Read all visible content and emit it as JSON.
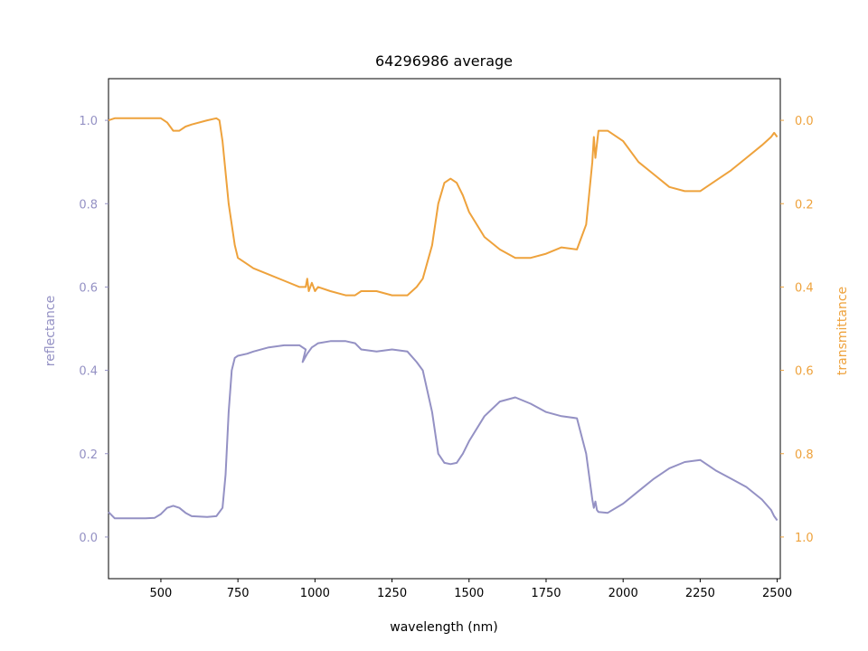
{
  "chart_data": {
    "type": "line",
    "title": "64296986 average",
    "xlabel": "wavelength (nm)",
    "ylabel_left": "reflectance",
    "ylabel_right": "transmittance",
    "xlim": [
      330,
      2510
    ],
    "ylim_left": [
      -0.1,
      1.1
    ],
    "ylim_right_inverted": [
      1.1,
      -0.1
    ],
    "xticks": [
      500,
      750,
      1000,
      1250,
      1500,
      1750,
      2000,
      2250,
      2500
    ],
    "yticks_left": [
      0.0,
      0.2,
      0.4,
      0.6,
      0.8,
      1.0
    ],
    "yticks_right": [
      0.0,
      0.2,
      0.4,
      0.6,
      0.8,
      1.0
    ],
    "grid": false,
    "colors": {
      "reflectance": "#9491c4",
      "transmittance": "#eea23c",
      "axis": "#000000"
    },
    "series": [
      {
        "name": "reflectance",
        "axis": "left",
        "x": [
          330,
          350,
          400,
          450,
          480,
          500,
          520,
          540,
          560,
          580,
          600,
          650,
          680,
          700,
          710,
          720,
          730,
          740,
          750,
          780,
          800,
          850,
          900,
          950,
          970,
          960,
          975,
          990,
          1000,
          1010,
          1050,
          1100,
          1130,
          1150,
          1200,
          1250,
          1300,
          1330,
          1350,
          1380,
          1400,
          1420,
          1440,
          1460,
          1480,
          1500,
          1550,
          1600,
          1650,
          1700,
          1750,
          1800,
          1850,
          1880,
          1900,
          1905,
          1910,
          1915,
          1920,
          1950,
          2000,
          2050,
          2100,
          2150,
          2200,
          2250,
          2300,
          2350,
          2400,
          2450,
          2480,
          2490,
          2500
        ],
        "values": [
          0.06,
          0.045,
          0.045,
          0.045,
          0.046,
          0.055,
          0.07,
          0.075,
          0.07,
          0.058,
          0.05,
          0.048,
          0.05,
          0.07,
          0.15,
          0.3,
          0.4,
          0.43,
          0.435,
          0.44,
          0.445,
          0.455,
          0.46,
          0.46,
          0.45,
          0.42,
          0.44,
          0.455,
          0.46,
          0.465,
          0.47,
          0.47,
          0.465,
          0.45,
          0.445,
          0.45,
          0.445,
          0.42,
          0.4,
          0.3,
          0.2,
          0.178,
          0.175,
          0.178,
          0.2,
          0.23,
          0.29,
          0.325,
          0.335,
          0.32,
          0.3,
          0.29,
          0.285,
          0.2,
          0.09,
          0.07,
          0.085,
          0.065,
          0.06,
          0.058,
          0.08,
          0.11,
          0.14,
          0.165,
          0.18,
          0.185,
          0.16,
          0.14,
          0.12,
          0.09,
          0.065,
          0.05,
          0.04
        ]
      },
      {
        "name": "transmittance",
        "axis": "right",
        "x": [
          330,
          350,
          400,
          450,
          500,
          520,
          540,
          560,
          580,
          600,
          650,
          680,
          690,
          700,
          720,
          740,
          750,
          780,
          800,
          850,
          900,
          950,
          970,
          975,
          980,
          990,
          1000,
          1010,
          1050,
          1100,
          1130,
          1150,
          1200,
          1250,
          1300,
          1330,
          1350,
          1380,
          1400,
          1420,
          1440,
          1460,
          1480,
          1500,
          1550,
          1600,
          1650,
          1700,
          1750,
          1800,
          1850,
          1880,
          1900,
          1905,
          1910,
          1920,
          1950,
          2000,
          2050,
          2100,
          2150,
          2200,
          2250,
          2300,
          2350,
          2400,
          2450,
          2480,
          2490,
          2500
        ],
        "values": [
          0.0,
          -0.005,
          -0.005,
          -0.005,
          -0.005,
          0.005,
          0.025,
          0.025,
          0.015,
          0.01,
          0.0,
          -0.005,
          0.0,
          0.05,
          0.2,
          0.3,
          0.33,
          0.345,
          0.355,
          0.37,
          0.385,
          0.4,
          0.4,
          0.38,
          0.41,
          0.39,
          0.41,
          0.4,
          0.41,
          0.42,
          0.42,
          0.41,
          0.41,
          0.42,
          0.42,
          0.4,
          0.38,
          0.3,
          0.2,
          0.15,
          0.14,
          0.15,
          0.18,
          0.22,
          0.28,
          0.31,
          0.33,
          0.33,
          0.32,
          0.305,
          0.31,
          0.25,
          0.1,
          0.04,
          0.09,
          0.025,
          0.025,
          0.05,
          0.1,
          0.13,
          0.16,
          0.17,
          0.17,
          0.145,
          0.12,
          0.09,
          0.06,
          0.04,
          0.03,
          0.04
        ]
      }
    ]
  }
}
